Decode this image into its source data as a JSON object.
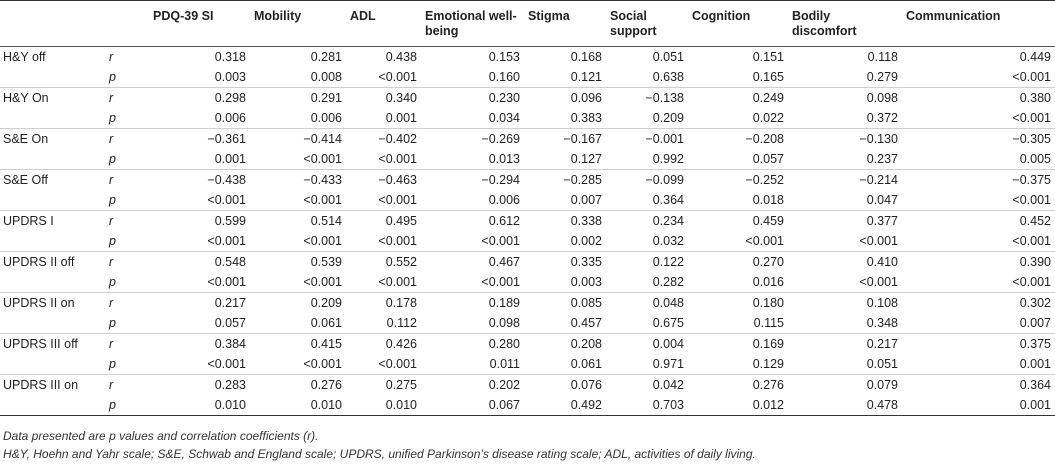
{
  "table": {
    "columns": [
      "",
      "",
      "PDQ-39 SI",
      "Mobility",
      "ADL",
      "Emotional well-being",
      "Stigma",
      "Social support",
      "Cognition",
      "Bodily discomfort",
      "Communication"
    ],
    "groups": [
      {
        "label": "H&Y off",
        "rows": [
          {
            "stat": "r",
            "values": [
              "0.318",
              "0.281",
              "0.438",
              "0.153",
              "0.168",
              "0.051",
              "0.151",
              "0.118",
              "0.449"
            ]
          },
          {
            "stat": "p",
            "values": [
              "0.003",
              "0.008",
              "<0.001",
              "0.160",
              "0.121",
              "0.638",
              "0.165",
              "0.279",
              "<0.001"
            ]
          }
        ]
      },
      {
        "label": "H&Y On",
        "rows": [
          {
            "stat": "r",
            "values": [
              "0.298",
              "0.291",
              "0.340",
              "0.230",
              "0.096",
              "−0.138",
              "0.249",
              "0.098",
              "0.380"
            ]
          },
          {
            "stat": "p",
            "values": [
              "0.006",
              "0.006",
              "0.001",
              "0.034",
              "0.383",
              "0.209",
              "0.022",
              "0.372",
              "<0.001"
            ]
          }
        ]
      },
      {
        "label": "S&E On",
        "rows": [
          {
            "stat": "r",
            "values": [
              "−0.361",
              "−0.414",
              "−0.402",
              "−0.269",
              "−0.167",
              "−0.001",
              "−0.208",
              "−0.130",
              "−0.305"
            ]
          },
          {
            "stat": "p",
            "values": [
              "0.001",
              "<0.001",
              "<0.001",
              "0.013",
              "0.127",
              "0.992",
              "0.057",
              "0.237",
              "0.005"
            ]
          }
        ]
      },
      {
        "label": "S&E Off",
        "rows": [
          {
            "stat": "r",
            "values": [
              "−0.438",
              "−0.433",
              "−0.463",
              "−0.294",
              "−0.285",
              "−0.099",
              "−0.252",
              "−0.214",
              "−0.375"
            ]
          },
          {
            "stat": "p",
            "values": [
              "<0.001",
              "<0.001",
              "<0.001",
              "0.006",
              "0.007",
              "0.364",
              "0.018",
              "0.047",
              "<0.001"
            ]
          }
        ]
      },
      {
        "label": "UPDRS I",
        "rows": [
          {
            "stat": "r",
            "values": [
              "0.599",
              "0.514",
              "0.495",
              "0.612",
              "0.338",
              "0.234",
              "0.459",
              "0.377",
              "0.452"
            ]
          },
          {
            "stat": "p",
            "values": [
              "<0.001",
              "<0.001",
              "<0.001",
              "<0.001",
              "0.002",
              "0.032",
              "<0.001",
              "<0.001",
              "<0.001"
            ]
          }
        ]
      },
      {
        "label": "UPDRS II off",
        "rows": [
          {
            "stat": "r",
            "values": [
              "0.548",
              "0.539",
              "0.552",
              "0.467",
              "0.335",
              "0.122",
              "0.270",
              "0.410",
              "0.390"
            ]
          },
          {
            "stat": "p",
            "values": [
              "<0.001",
              "<0.001",
              "<0.001",
              "<0.001",
              "0.003",
              "0.282",
              "0.016",
              "<0.001",
              "<0.001"
            ]
          }
        ]
      },
      {
        "label": "UPDRS II on",
        "rows": [
          {
            "stat": "r",
            "values": [
              "0.217",
              "0.209",
              "0.178",
              "0.189",
              "0.085",
              "0.048",
              "0.180",
              "0.108",
              "0.302"
            ]
          },
          {
            "stat": "p",
            "values": [
              "0.057",
              "0.061",
              "0.112",
              "0.098",
              "0.457",
              "0.675",
              "0.115",
              "0.348",
              "0.007"
            ]
          }
        ]
      },
      {
        "label": "UPDRS III off",
        "rows": [
          {
            "stat": "r",
            "values": [
              "0.384",
              "0.415",
              "0.426",
              "0.280",
              "0.208",
              "0.004",
              "0.169",
              "0.217",
              "0.375"
            ]
          },
          {
            "stat": "p",
            "values": [
              "<0.001",
              "<0.001",
              "<0.001",
              "0.011",
              "0.061",
              "0.971",
              "0.129",
              "0.051",
              "0.001"
            ]
          }
        ]
      },
      {
        "label": "UPDRS III on",
        "rows": [
          {
            "stat": "r",
            "values": [
              "0.283",
              "0.276",
              "0.275",
              "0.202",
              "0.076",
              "0.042",
              "0.276",
              "0.079",
              "0.364"
            ]
          },
          {
            "stat": "p",
            "values": [
              "0.010",
              "0.010",
              "0.010",
              "0.067",
              "0.492",
              "0.703",
              "0.012",
              "0.478",
              "0.001"
            ]
          }
        ]
      }
    ]
  },
  "notes": {
    "line1": "Data presented are p values and correlation coefficients (r).",
    "line2": "H&Y, Hoehn and Yahr scale; S&E, Schwab and England scale; UPDRS, unified Parkinson’s disease rating scale; ADL, activities of daily living."
  }
}
